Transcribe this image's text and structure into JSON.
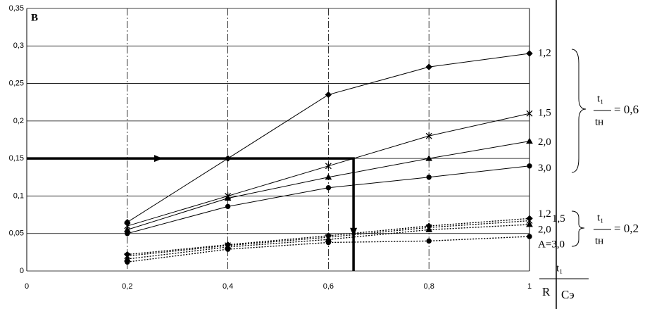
{
  "chart_data": {
    "type": "line",
    "panel_label": "B",
    "x": [
      0.2,
      0.4,
      0.6,
      0.8,
      1
    ],
    "xlim": [
      0,
      1
    ],
    "ylim": [
      0,
      0.35
    ],
    "xticks": [
      0,
      {
        "value": 0.2,
        "label": "0,2"
      },
      {
        "value": 0.4,
        "label": "0,4"
      },
      {
        "value": 0.6,
        "label": "0,6"
      },
      {
        "value": 0.8,
        "label": "0,8"
      },
      1
    ],
    "yticks": [
      0,
      {
        "value": 0.05,
        "label": "0,05"
      },
      {
        "value": 0.1,
        "label": "0,1"
      },
      {
        "value": 0.15,
        "label": "0,15"
      },
      {
        "value": 0.2,
        "label": "0,2"
      },
      {
        "value": 0.25,
        "label": "0,25"
      },
      {
        "value": 0.3,
        "label": "0,3"
      },
      {
        "value": 0.35,
        "label": "0,35"
      }
    ],
    "grid": true,
    "color": "#000000",
    "series": [
      {
        "name": "1,2",
        "marker": "diamond",
        "dash": false,
        "values": [
          0.065,
          0.15,
          0.235,
          0.272,
          0.29
        ]
      },
      {
        "name": "1,5",
        "marker": "cross",
        "dash": false,
        "values": [
          0.06,
          0.1,
          0.14,
          0.18,
          0.21
        ]
      },
      {
        "name": "2,0",
        "marker": "triangle",
        "dash": false,
        "values": [
          0.055,
          0.097,
          0.125,
          0.15,
          0.173
        ]
      },
      {
        "name": "3,0",
        "marker": "circle",
        "dash": false,
        "values": [
          0.05,
          0.086,
          0.111,
          0.125,
          0.14
        ]
      },
      {
        "name": "1,2",
        "marker": "diamond",
        "dash": true,
        "values": [
          0.022,
          0.035,
          0.047,
          0.06,
          0.07
        ]
      },
      {
        "name": "1,5",
        "marker": "cross",
        "dash": true,
        "values": [
          0.02,
          0.034,
          0.045,
          0.058,
          0.067
        ]
      },
      {
        "name": "2,0",
        "marker": "triangle",
        "dash": true,
        "values": [
          0.016,
          0.032,
          0.042,
          0.055,
          0.062
        ]
      },
      {
        "name": "A=3,0",
        "marker": "circle",
        "dash": true,
        "values": [
          0.012,
          0.029,
          0.038,
          0.04,
          0.046
        ]
      }
    ],
    "guide": {
      "x": 0.65,
      "y": 0.15
    },
    "group_labels": [
      {
        "numerator": "t₁",
        "denominator": "tн",
        "value_text": "= 0,6"
      },
      {
        "numerator": "t₁",
        "denominator": "tн",
        "value_text": "= 0,2"
      }
    ],
    "x_label": {
      "numerator": "t₁",
      "denominator_left": "R",
      "denominator_right": "Cэ"
    }
  }
}
